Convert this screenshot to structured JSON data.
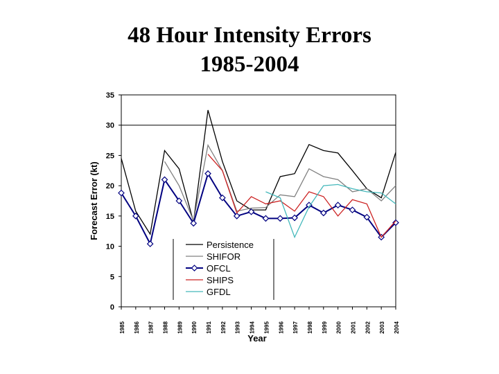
{
  "chart_data": {
    "type": "line",
    "title_line1": "48 Hour Intensity Errors",
    "title_line2": "1985-2004",
    "xlabel": "Year",
    "ylabel": "Forecast Error (kt)",
    "ylim": [
      0,
      35
    ],
    "yticks": [
      "0",
      "5",
      "10",
      "15",
      "20",
      "25",
      "30",
      "35"
    ],
    "categories": [
      "1985",
      "1986",
      "1987",
      "1988",
      "1989",
      "1990",
      "1991",
      "1992",
      "1993",
      "1994",
      "1995",
      "1996",
      "1997",
      "1998",
      "1999",
      "2000",
      "2001",
      "2002",
      "2003",
      "2004"
    ],
    "reference_line": 30,
    "legend_position": "bottom-center",
    "series": [
      {
        "name": "Persistence",
        "color": "#000000",
        "marker": "none",
        "values": [
          24.5,
          15.8,
          12.0,
          25.8,
          22.8,
          14.0,
          32.5,
          24.0,
          17.5,
          16.0,
          16.0,
          21.5,
          22.0,
          26.8,
          25.8,
          25.4,
          22.5,
          19.5,
          18.0,
          25.5
        ]
      },
      {
        "name": "SHIFOR",
        "color": "#808080",
        "marker": "none",
        "values": [
          null,
          null,
          null,
          24.0,
          20.0,
          14.2,
          26.7,
          22.5,
          15.8,
          16.3,
          16.4,
          18.5,
          18.2,
          22.8,
          21.5,
          21.0,
          19.0,
          19.5,
          17.5,
          20.0
        ]
      },
      {
        "name": "OFCL",
        "color": "#000080",
        "marker": "diamond",
        "values": [
          18.8,
          15.0,
          10.4,
          21.0,
          17.5,
          13.8,
          22.0,
          18.0,
          15.0,
          15.7,
          14.6,
          14.6,
          14.7,
          16.8,
          15.5,
          16.8,
          16.0,
          14.8,
          11.5,
          13.9
        ]
      },
      {
        "name": "SHIPS",
        "color": "#cc2222",
        "marker": "none",
        "values": [
          null,
          null,
          null,
          null,
          null,
          null,
          25.2,
          22.5,
          15.5,
          18.2,
          17.0,
          17.5,
          15.8,
          19.0,
          18.2,
          15.0,
          17.7,
          17.0,
          11.5,
          14.2
        ]
      },
      {
        "name": "GFDL",
        "color": "#44b8bb",
        "marker": "none",
        "values": [
          null,
          null,
          null,
          null,
          null,
          null,
          null,
          null,
          null,
          null,
          19.0,
          18.0,
          11.5,
          16.5,
          20.0,
          20.2,
          19.5,
          19.0,
          18.8,
          17.0
        ]
      }
    ]
  }
}
